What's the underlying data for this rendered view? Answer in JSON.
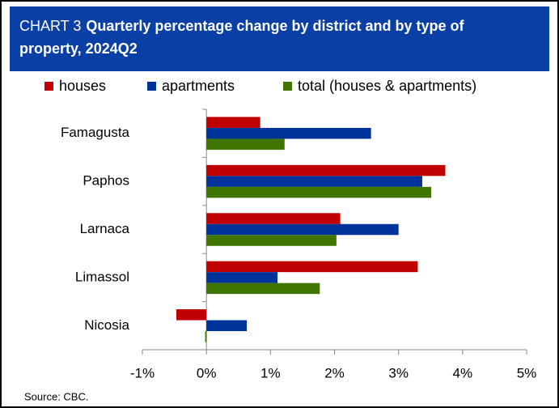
{
  "chart_data": {
    "type": "bar",
    "orientation": "horizontal",
    "chart_label": "CHART 3",
    "title": "Quarterly percentage change by district and by type of property, 2024Q2",
    "source": "Source: CBC.",
    "categories": [
      "Famagusta",
      "Paphos",
      "Larnaca",
      "Limassol",
      "Nicosia"
    ],
    "series": [
      {
        "name": "houses",
        "color": "#c00000",
        "values": [
          0.84,
          3.73,
          2.09,
          3.3,
          -0.47
        ]
      },
      {
        "name": "apartments",
        "color": "#003399",
        "values": [
          2.57,
          3.37,
          3.0,
          1.11,
          0.63
        ]
      },
      {
        "name": "total (houses & apartments)",
        "color": "#3f7500",
        "values": [
          1.22,
          3.51,
          2.03,
          1.77,
          -0.02
        ]
      }
    ],
    "xlim": [
      -1,
      5
    ],
    "xticks": [
      {
        "value": -1,
        "label": "-1%"
      },
      {
        "value": 0,
        "label": "0%"
      },
      {
        "value": 1,
        "label": "1%"
      },
      {
        "value": 2,
        "label": "2%"
      },
      {
        "value": 3,
        "label": "3%"
      },
      {
        "value": 4,
        "label": "4%"
      },
      {
        "value": 5,
        "label": "5%"
      }
    ],
    "grid": false,
    "legend": "top"
  }
}
